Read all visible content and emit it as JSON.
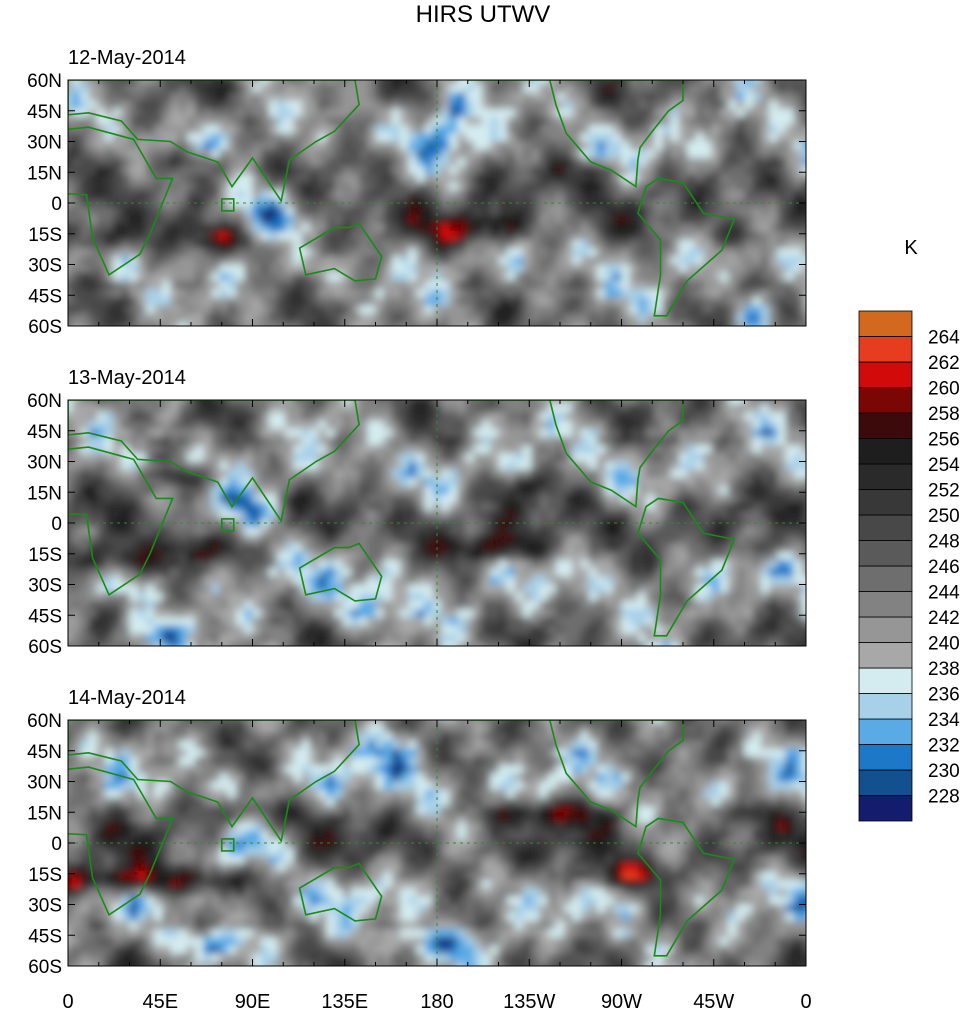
{
  "chart_data": {
    "type": "heatmap",
    "title": "HIRS UTWV",
    "units_label": "K",
    "x_tick_labels": [
      "0",
      "45E",
      "90E",
      "135E",
      "180",
      "135W",
      "90W",
      "45W",
      "0"
    ],
    "y_tick_labels": [
      "60N",
      "45N",
      "30N",
      "15N",
      "0",
      "15S",
      "30S",
      "45S",
      "60S"
    ],
    "xlim": [
      0,
      360
    ],
    "ylim": [
      -60,
      60
    ],
    "colorbar": {
      "levels": [
        228,
        230,
        232,
        234,
        236,
        238,
        240,
        242,
        244,
        246,
        248,
        250,
        252,
        254,
        256,
        258,
        260,
        262,
        264
      ],
      "labels": [
        "228",
        "230",
        "232",
        "234",
        "236",
        "238",
        "240",
        "242",
        "244",
        "246",
        "248",
        "250",
        "252",
        "254",
        "256",
        "258",
        "260",
        "262",
        "264"
      ],
      "colors": [
        "#141c6e",
        "#12508f",
        "#1e78c8",
        "#5aaae6",
        "#a8d0e8",
        "#d4ecf0",
        "#a8a8a8",
        "#969696",
        "#828282",
        "#6e6e6e",
        "#5a5a5a",
        "#484848",
        "#383838",
        "#2a2a2a",
        "#1e1e1e",
        "#3c0a0a",
        "#7a0606",
        "#d20a0a",
        "#e83c1e",
        "#d2691e"
      ]
    },
    "panels": [
      {
        "label": "12-May-2014"
      },
      {
        "label": "13-May-2014"
      },
      {
        "label": "14-May-2014"
      }
    ]
  }
}
